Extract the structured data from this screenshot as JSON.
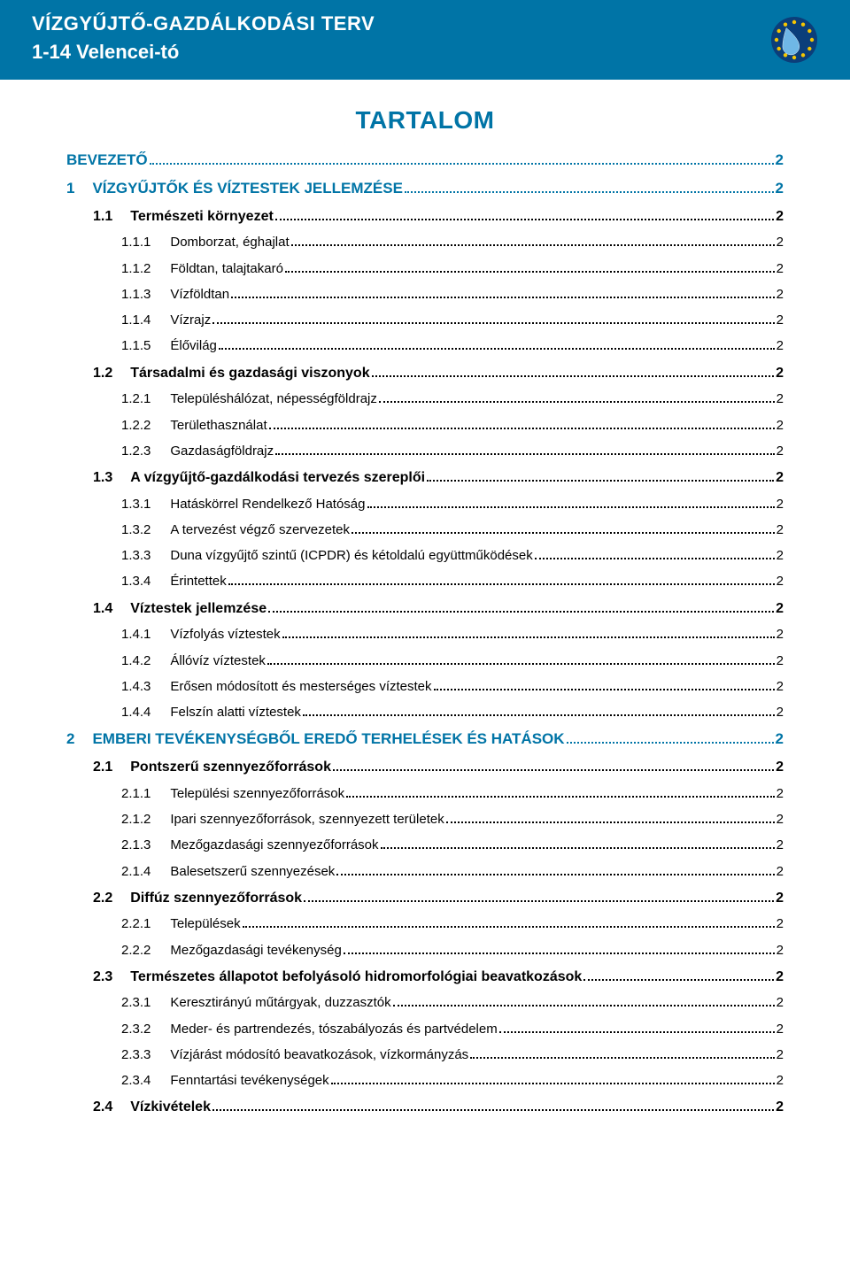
{
  "header": {
    "title": "VÍZGYŰJTŐ-GAZDÁLKODÁSI TERV",
    "subtitle": "1-14 Velencei-tó"
  },
  "colors": {
    "header_bg": "#0074a6",
    "header_text": "#ffffff",
    "accent": "#0074a6",
    "body_text": "#000000",
    "page_bg": "#ffffff"
  },
  "main_title": "TARTALOM",
  "toc": [
    {
      "level": 0,
      "num": "",
      "label": "BEVEZETŐ",
      "page": "2",
      "noNum": true
    },
    {
      "level": 0,
      "num": "1",
      "label": "VÍZGYŰJTŐK ÉS VÍZTESTEK JELLEMZÉSE",
      "page": "2"
    },
    {
      "level": 1,
      "num": "1.1",
      "label": "Természeti környezet",
      "page": "2"
    },
    {
      "level": 2,
      "num": "1.1.1",
      "label": "Domborzat, éghajlat",
      "page": "2"
    },
    {
      "level": 2,
      "num": "1.1.2",
      "label": "Földtan, talajtakaró",
      "page": "2"
    },
    {
      "level": 2,
      "num": "1.1.3",
      "label": "Vízföldtan",
      "page": "2"
    },
    {
      "level": 2,
      "num": "1.1.4",
      "label": "Vízrajz",
      "page": "2"
    },
    {
      "level": 2,
      "num": "1.1.5",
      "label": "Élővilág",
      "page": "2"
    },
    {
      "level": 1,
      "num": "1.2",
      "label": "Társadalmi és gazdasági viszonyok",
      "page": "2"
    },
    {
      "level": 2,
      "num": "1.2.1",
      "label": "Településhálózat, népességföldrajz",
      "page": "2"
    },
    {
      "level": 2,
      "num": "1.2.2",
      "label": "Területhasználat",
      "page": "2"
    },
    {
      "level": 2,
      "num": "1.2.3",
      "label": "Gazdaságföldrajz",
      "page": "2"
    },
    {
      "level": 1,
      "num": "1.3",
      "label": "A vízgyűjtő-gazdálkodási tervezés szereplői",
      "page": "2"
    },
    {
      "level": 2,
      "num": "1.3.1",
      "label": "Hatáskörrel Rendelkező Hatóság",
      "page": "2"
    },
    {
      "level": 2,
      "num": "1.3.2",
      "label": "A tervezést végző szervezetek",
      "page": "2"
    },
    {
      "level": 2,
      "num": "1.3.3",
      "label": "Duna vízgyűjtő szintű (ICPDR) és kétoldalú együttműködések",
      "page": "2"
    },
    {
      "level": 2,
      "num": "1.3.4",
      "label": "Érintettek",
      "page": "2"
    },
    {
      "level": 1,
      "num": "1.4",
      "label": "Víztestek jellemzése",
      "page": "2"
    },
    {
      "level": 2,
      "num": "1.4.1",
      "label": "Vízfolyás víztestek",
      "page": "2"
    },
    {
      "level": 2,
      "num": "1.4.2",
      "label": "Állóvíz víztestek",
      "page": "2"
    },
    {
      "level": 2,
      "num": "1.4.3",
      "label": "Erősen módosított és mesterséges víztestek",
      "page": "2"
    },
    {
      "level": 2,
      "num": "1.4.4",
      "label": "Felszín alatti víztestek",
      "page": "2"
    },
    {
      "level": 0,
      "num": "2",
      "label": "EMBERI TEVÉKENYSÉGBŐL EREDŐ TERHELÉSEK ÉS HATÁSOK",
      "page": "2"
    },
    {
      "level": 1,
      "num": "2.1",
      "label": "Pontszerű szennyezőforrások",
      "page": "2"
    },
    {
      "level": 2,
      "num": "2.1.1",
      "label": "Települési szennyezőforrások",
      "page": "2"
    },
    {
      "level": 2,
      "num": "2.1.2",
      "label": "Ipari szennyezőforrások, szennyezett területek",
      "page": "2"
    },
    {
      "level": 2,
      "num": "2.1.3",
      "label": "Mezőgazdasági szennyezőforrások",
      "page": "2"
    },
    {
      "level": 2,
      "num": "2.1.4",
      "label": "Balesetszerű szennyezések",
      "page": "2"
    },
    {
      "level": 1,
      "num": "2.2",
      "label": "Diffúz szennyezőforrások",
      "page": "2"
    },
    {
      "level": 2,
      "num": "2.2.1",
      "label": "Települések",
      "page": "2"
    },
    {
      "level": 2,
      "num": "2.2.2",
      "label": "Mezőgazdasági tevékenység",
      "page": "2"
    },
    {
      "level": 1,
      "num": "2.3",
      "label": "Természetes állapotot befolyásoló hidromorfológiai beavatkozások",
      "page": "2"
    },
    {
      "level": 2,
      "num": "2.3.1",
      "label": "Keresztirányú műtárgyak, duzzasztók",
      "page": "2"
    },
    {
      "level": 2,
      "num": "2.3.2",
      "label": "Meder- és partrendezés, tószabályozás és partvédelem",
      "page": "2"
    },
    {
      "level": 2,
      "num": "2.3.3",
      "label": "Vízjárást módosító beavatkozások, vízkormányzás",
      "page": "2"
    },
    {
      "level": 2,
      "num": "2.3.4",
      "label": "Fenntartási tevékenységek",
      "page": "2"
    },
    {
      "level": 1,
      "num": "2.4",
      "label": "Vízkivételek",
      "page": "2"
    }
  ]
}
